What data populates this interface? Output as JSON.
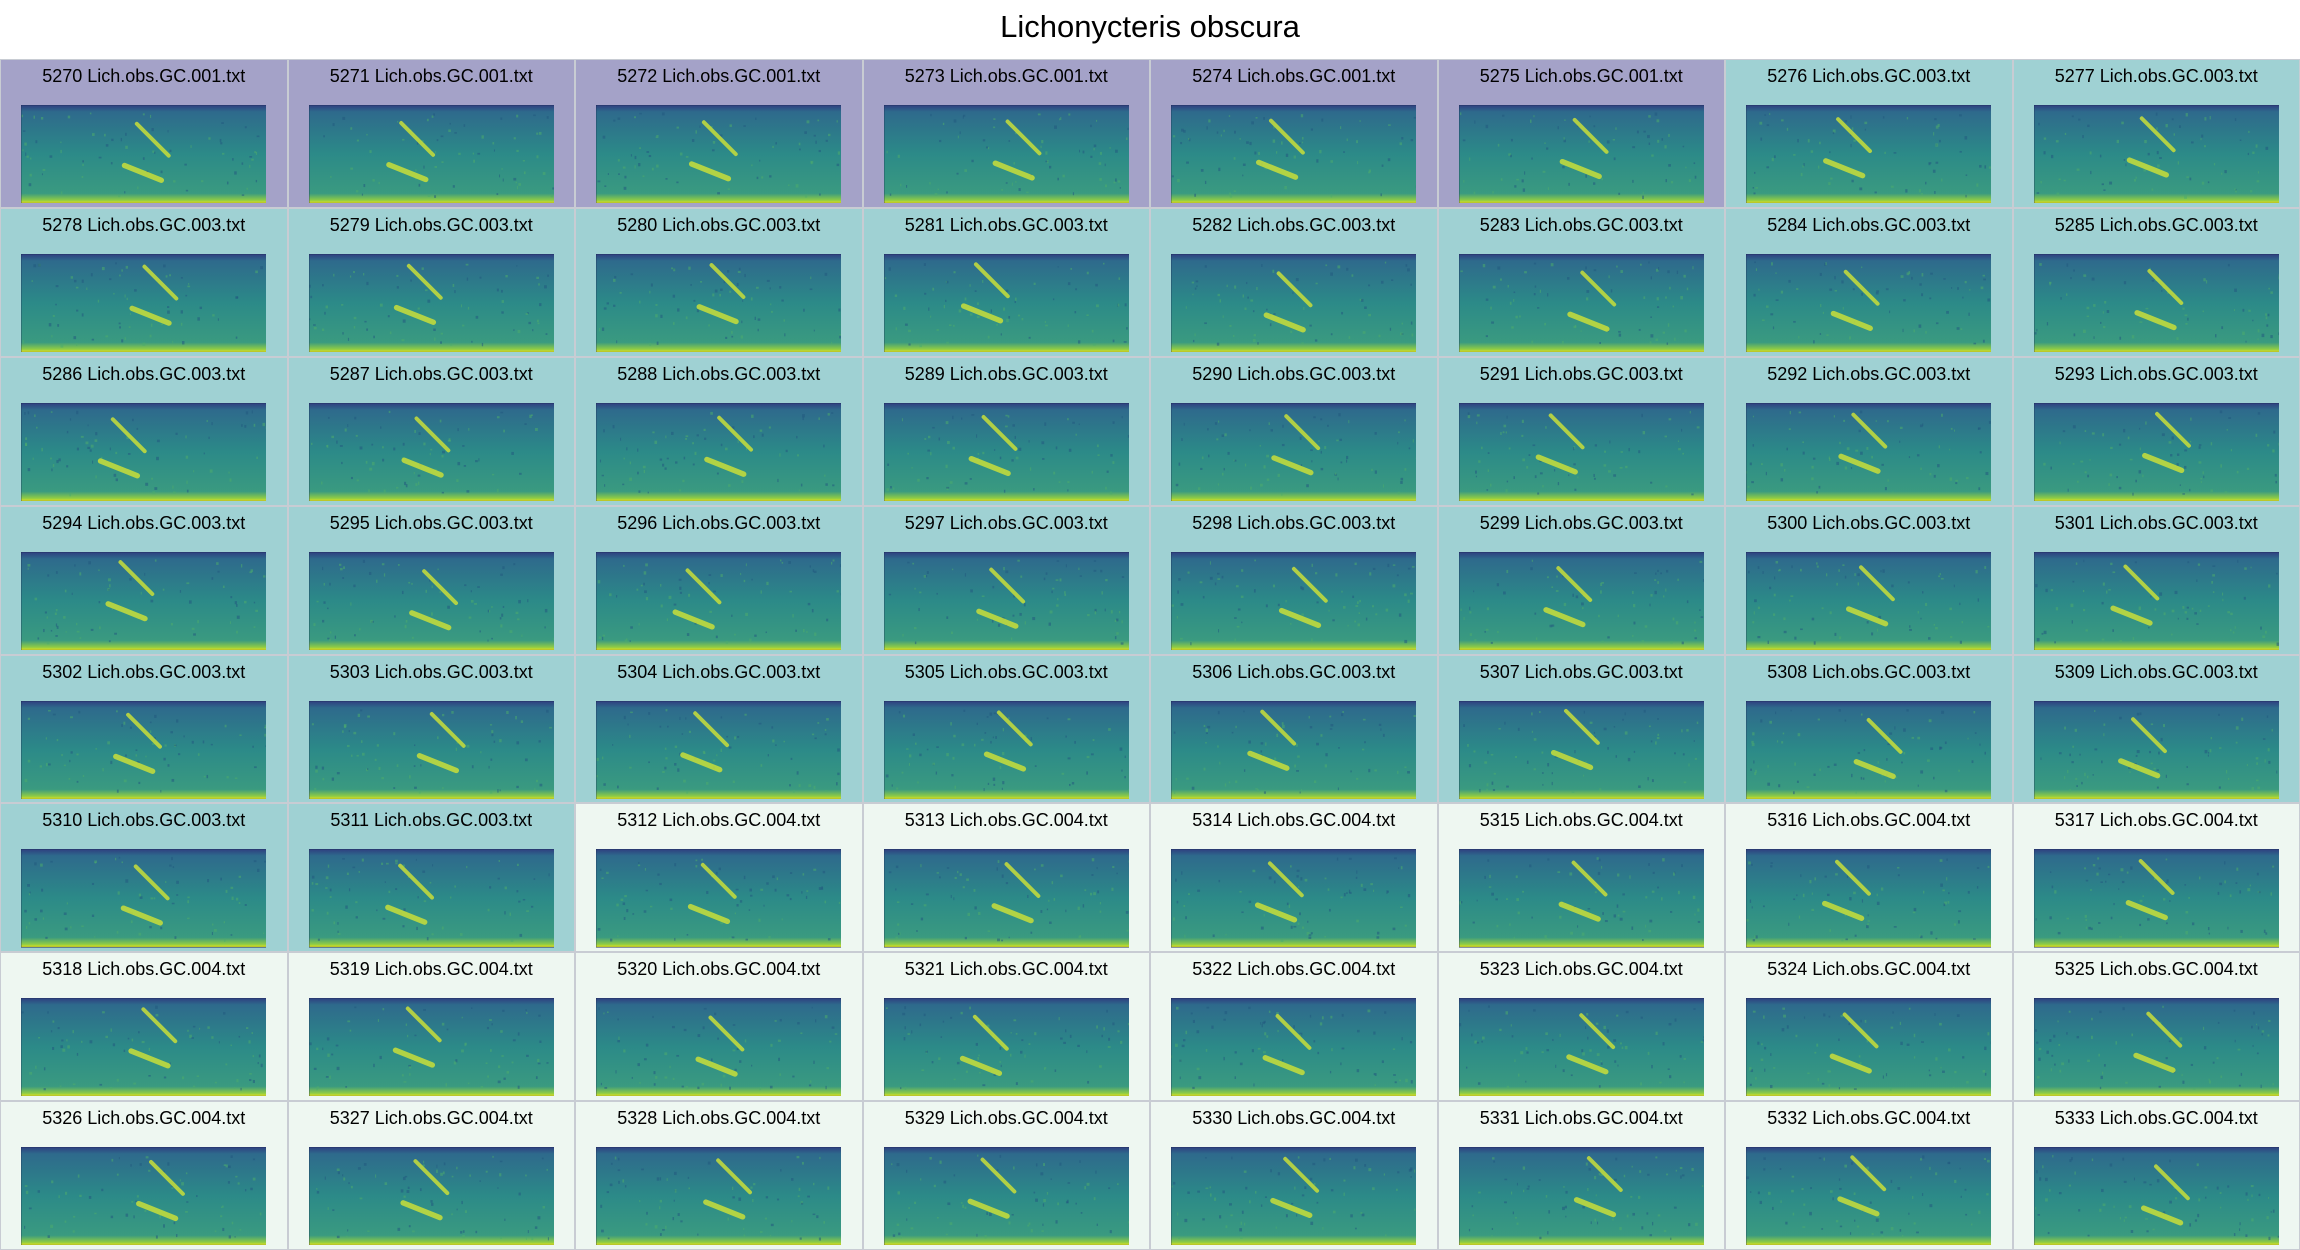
{
  "title": "Lichonycteris obscura",
  "colors": {
    "GC.001": "#a4a2c8",
    "GC.003": "#9fd1d3",
    "GC.004": "#eef7f1"
  },
  "tiles": [
    {
      "id": "5270",
      "file": "Lich.obs.GC.001.txt",
      "label": "5270 Lich.obs.GC.001.txt",
      "group": "GC.001"
    },
    {
      "id": "5271",
      "file": "Lich.obs.GC.001.txt",
      "label": "5271 Lich.obs.GC.001.txt",
      "group": "GC.001"
    },
    {
      "id": "5272",
      "file": "Lich.obs.GC.001.txt",
      "label": "5272 Lich.obs.GC.001.txt",
      "group": "GC.001"
    },
    {
      "id": "5273",
      "file": "Lich.obs.GC.001.txt",
      "label": "5273 Lich.obs.GC.001.txt",
      "group": "GC.001"
    },
    {
      "id": "5274",
      "file": "Lich.obs.GC.001.txt",
      "label": "5274 Lich.obs.GC.001.txt",
      "group": "GC.001"
    },
    {
      "id": "5275",
      "file": "Lich.obs.GC.001.txt",
      "label": "5275 Lich.obs.GC.001.txt",
      "group": "GC.001"
    },
    {
      "id": "5276",
      "file": "Lich.obs.GC.003.txt",
      "label": "5276 Lich.obs.GC.003.txt",
      "group": "GC.003"
    },
    {
      "id": "5277",
      "file": "Lich.obs.GC.003.txt",
      "label": "5277 Lich.obs.GC.003.txt",
      "group": "GC.003"
    },
    {
      "id": "5278",
      "file": "Lich.obs.GC.003.txt",
      "label": "5278 Lich.obs.GC.003.txt",
      "group": "GC.003"
    },
    {
      "id": "5279",
      "file": "Lich.obs.GC.003.txt",
      "label": "5279 Lich.obs.GC.003.txt",
      "group": "GC.003"
    },
    {
      "id": "5280",
      "file": "Lich.obs.GC.003.txt",
      "label": "5280 Lich.obs.GC.003.txt",
      "group": "GC.003"
    },
    {
      "id": "5281",
      "file": "Lich.obs.GC.003.txt",
      "label": "5281 Lich.obs.GC.003.txt",
      "group": "GC.003"
    },
    {
      "id": "5282",
      "file": "Lich.obs.GC.003.txt",
      "label": "5282 Lich.obs.GC.003.txt",
      "group": "GC.003"
    },
    {
      "id": "5283",
      "file": "Lich.obs.GC.003.txt",
      "label": "5283 Lich.obs.GC.003.txt",
      "group": "GC.003"
    },
    {
      "id": "5284",
      "file": "Lich.obs.GC.003.txt",
      "label": "5284 Lich.obs.GC.003.txt",
      "group": "GC.003"
    },
    {
      "id": "5285",
      "file": "Lich.obs.GC.003.txt",
      "label": "5285 Lich.obs.GC.003.txt",
      "group": "GC.003"
    },
    {
      "id": "5286",
      "file": "Lich.obs.GC.003.txt",
      "label": "5286 Lich.obs.GC.003.txt",
      "group": "GC.003"
    },
    {
      "id": "5287",
      "file": "Lich.obs.GC.003.txt",
      "label": "5287 Lich.obs.GC.003.txt",
      "group": "GC.003"
    },
    {
      "id": "5288",
      "file": "Lich.obs.GC.003.txt",
      "label": "5288 Lich.obs.GC.003.txt",
      "group": "GC.003"
    },
    {
      "id": "5289",
      "file": "Lich.obs.GC.003.txt",
      "label": "5289 Lich.obs.GC.003.txt",
      "group": "GC.003"
    },
    {
      "id": "5290",
      "file": "Lich.obs.GC.003.txt",
      "label": "5290 Lich.obs.GC.003.txt",
      "group": "GC.003"
    },
    {
      "id": "5291",
      "file": "Lich.obs.GC.003.txt",
      "label": "5291 Lich.obs.GC.003.txt",
      "group": "GC.003"
    },
    {
      "id": "5292",
      "file": "Lich.obs.GC.003.txt",
      "label": "5292 Lich.obs.GC.003.txt",
      "group": "GC.003"
    },
    {
      "id": "5293",
      "file": "Lich.obs.GC.003.txt",
      "label": "5293 Lich.obs.GC.003.txt",
      "group": "GC.003"
    },
    {
      "id": "5294",
      "file": "Lich.obs.GC.003.txt",
      "label": "5294 Lich.obs.GC.003.txt",
      "group": "GC.003"
    },
    {
      "id": "5295",
      "file": "Lich.obs.GC.003.txt",
      "label": "5295 Lich.obs.GC.003.txt",
      "group": "GC.003"
    },
    {
      "id": "5296",
      "file": "Lich.obs.GC.003.txt",
      "label": "5296 Lich.obs.GC.003.txt",
      "group": "GC.003"
    },
    {
      "id": "5297",
      "file": "Lich.obs.GC.003.txt",
      "label": "5297 Lich.obs.GC.003.txt",
      "group": "GC.003"
    },
    {
      "id": "5298",
      "file": "Lich.obs.GC.003.txt",
      "label": "5298 Lich.obs.GC.003.txt",
      "group": "GC.003"
    },
    {
      "id": "5299",
      "file": "Lich.obs.GC.003.txt",
      "label": "5299 Lich.obs.GC.003.txt",
      "group": "GC.003"
    },
    {
      "id": "5300",
      "file": "Lich.obs.GC.003.txt",
      "label": "5300 Lich.obs.GC.003.txt",
      "group": "GC.003"
    },
    {
      "id": "5301",
      "file": "Lich.obs.GC.003.txt",
      "label": "5301 Lich.obs.GC.003.txt",
      "group": "GC.003"
    },
    {
      "id": "5302",
      "file": "Lich.obs.GC.003.txt",
      "label": "5302 Lich.obs.GC.003.txt",
      "group": "GC.003"
    },
    {
      "id": "5303",
      "file": "Lich.obs.GC.003.txt",
      "label": "5303 Lich.obs.GC.003.txt",
      "group": "GC.003"
    },
    {
      "id": "5304",
      "file": "Lich.obs.GC.003.txt",
      "label": "5304 Lich.obs.GC.003.txt",
      "group": "GC.003"
    },
    {
      "id": "5305",
      "file": "Lich.obs.GC.003.txt",
      "label": "5305 Lich.obs.GC.003.txt",
      "group": "GC.003"
    },
    {
      "id": "5306",
      "file": "Lich.obs.GC.003.txt",
      "label": "5306 Lich.obs.GC.003.txt",
      "group": "GC.003"
    },
    {
      "id": "5307",
      "file": "Lich.obs.GC.003.txt",
      "label": "5307 Lich.obs.GC.003.txt",
      "group": "GC.003"
    },
    {
      "id": "5308",
      "file": "Lich.obs.GC.003.txt",
      "label": "5308 Lich.obs.GC.003.txt",
      "group": "GC.003"
    },
    {
      "id": "5309",
      "file": "Lich.obs.GC.003.txt",
      "label": "5309 Lich.obs.GC.003.txt",
      "group": "GC.003"
    },
    {
      "id": "5310",
      "file": "Lich.obs.GC.003.txt",
      "label": "5310 Lich.obs.GC.003.txt",
      "group": "GC.003"
    },
    {
      "id": "5311",
      "file": "Lich.obs.GC.003.txt",
      "label": "5311 Lich.obs.GC.003.txt",
      "group": "GC.003"
    },
    {
      "id": "5312",
      "file": "Lich.obs.GC.004.txt",
      "label": "5312 Lich.obs.GC.004.txt",
      "group": "GC.004"
    },
    {
      "id": "5313",
      "file": "Lich.obs.GC.004.txt",
      "label": "5313 Lich.obs.GC.004.txt",
      "group": "GC.004"
    },
    {
      "id": "5314",
      "file": "Lich.obs.GC.004.txt",
      "label": "5314 Lich.obs.GC.004.txt",
      "group": "GC.004"
    },
    {
      "id": "5315",
      "file": "Lich.obs.GC.004.txt",
      "label": "5315 Lich.obs.GC.004.txt",
      "group": "GC.004"
    },
    {
      "id": "5316",
      "file": "Lich.obs.GC.004.txt",
      "label": "5316 Lich.obs.GC.004.txt",
      "group": "GC.004"
    },
    {
      "id": "5317",
      "file": "Lich.obs.GC.004.txt",
      "label": "5317 Lich.obs.GC.004.txt",
      "group": "GC.004"
    },
    {
      "id": "5318",
      "file": "Lich.obs.GC.004.txt",
      "label": "5318 Lich.obs.GC.004.txt",
      "group": "GC.004"
    },
    {
      "id": "5319",
      "file": "Lich.obs.GC.004.txt",
      "label": "5319 Lich.obs.GC.004.txt",
      "group": "GC.004"
    },
    {
      "id": "5320",
      "file": "Lich.obs.GC.004.txt",
      "label": "5320 Lich.obs.GC.004.txt",
      "group": "GC.004"
    },
    {
      "id": "5321",
      "file": "Lich.obs.GC.004.txt",
      "label": "5321 Lich.obs.GC.004.txt",
      "group": "GC.004"
    },
    {
      "id": "5322",
      "file": "Lich.obs.GC.004.txt",
      "label": "5322 Lich.obs.GC.004.txt",
      "group": "GC.004"
    },
    {
      "id": "5323",
      "file": "Lich.obs.GC.004.txt",
      "label": "5323 Lich.obs.GC.004.txt",
      "group": "GC.004"
    },
    {
      "id": "5324",
      "file": "Lich.obs.GC.004.txt",
      "label": "5324 Lich.obs.GC.004.txt",
      "group": "GC.004"
    },
    {
      "id": "5325",
      "file": "Lich.obs.GC.004.txt",
      "label": "5325 Lich.obs.GC.004.txt",
      "group": "GC.004"
    },
    {
      "id": "5326",
      "file": "Lich.obs.GC.004.txt",
      "label": "5326 Lich.obs.GC.004.txt",
      "group": "GC.004"
    },
    {
      "id": "5327",
      "file": "Lich.obs.GC.004.txt",
      "label": "5327 Lich.obs.GC.004.txt",
      "group": "GC.004"
    },
    {
      "id": "5328",
      "file": "Lich.obs.GC.004.txt",
      "label": "5328 Lich.obs.GC.004.txt",
      "group": "GC.004"
    },
    {
      "id": "5329",
      "file": "Lich.obs.GC.004.txt",
      "label": "5329 Lich.obs.GC.004.txt",
      "group": "GC.004"
    },
    {
      "id": "5330",
      "file": "Lich.obs.GC.004.txt",
      "label": "5330 Lich.obs.GC.004.txt",
      "group": "GC.004"
    },
    {
      "id": "5331",
      "file": "Lich.obs.GC.004.txt",
      "label": "5331 Lich.obs.GC.004.txt",
      "group": "GC.004"
    },
    {
      "id": "5332",
      "file": "Lich.obs.GC.004.txt",
      "label": "5332 Lich.obs.GC.004.txt",
      "group": "GC.004"
    },
    {
      "id": "5333",
      "file": "Lich.obs.GC.004.txt",
      "label": "5333 Lich.obs.GC.004.txt",
      "group": "GC.004"
    }
  ]
}
